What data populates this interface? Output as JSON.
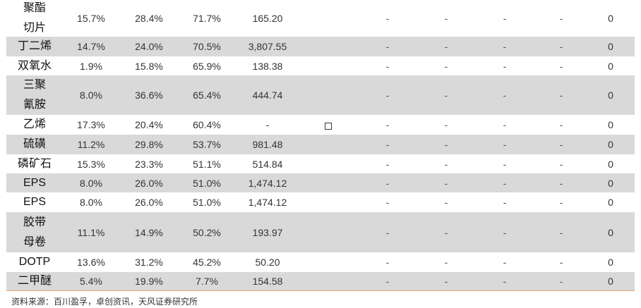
{
  "rows": [
    {
      "name": "聚酯切片",
      "v1": "15.7%",
      "v2": "28.4%",
      "v3": "71.7%",
      "v4": "165.20",
      "d1": "-",
      "d2": "-",
      "d3": "-",
      "d4": "-",
      "z": "0"
    },
    {
      "name": "丁二烯",
      "v1": "14.7%",
      "v2": "24.0%",
      "v3": "70.5%",
      "v4": "3,807.55",
      "d1": "-",
      "d2": "-",
      "d3": "-",
      "d4": "-",
      "z": "0"
    },
    {
      "name": "双氧水",
      "v1": "1.9%",
      "v2": "15.8%",
      "v3": "65.9%",
      "v4": "138.38",
      "d1": "-",
      "d2": "-",
      "d3": "-",
      "d4": "-",
      "z": "0"
    },
    {
      "name": "三聚氰胺",
      "v1": "8.0%",
      "v2": "36.6%",
      "v3": "65.4%",
      "v4": "444.74",
      "d1": "-",
      "d2": "-",
      "d3": "-",
      "d4": "-",
      "z": "0"
    },
    {
      "name": "乙烯",
      "v1": "17.3%",
      "v2": "20.4%",
      "v3": "60.4%",
      "v4": "-",
      "d1": "-",
      "d2": "-",
      "d3": "-",
      "d4": "-",
      "z": "0"
    },
    {
      "name": "硫磺",
      "v1": "11.2%",
      "v2": "29.8%",
      "v3": "53.7%",
      "v4": "981.48",
      "d1": "-",
      "d2": "-",
      "d3": "-",
      "d4": "-",
      "z": "0"
    },
    {
      "name": "磷矿石",
      "v1": "15.3%",
      "v2": "23.3%",
      "v3": "51.1%",
      "v4": "514.84",
      "d1": "-",
      "d2": "-",
      "d3": "-",
      "d4": "-",
      "z": "0"
    },
    {
      "name": "EPS",
      "v1": "8.0%",
      "v2": "26.0%",
      "v3": "51.0%",
      "v4": "1,474.12",
      "d1": "-",
      "d2": "-",
      "d3": "-",
      "d4": "-",
      "z": "0"
    },
    {
      "name": "EPS",
      "v1": "8.0%",
      "v2": "26.0%",
      "v3": "51.0%",
      "v4": "1,474.12",
      "d1": "-",
      "d2": "-",
      "d3": "-",
      "d4": "-",
      "z": "0"
    },
    {
      "name": "胶带母卷",
      "v1": "11.1%",
      "v2": "14.9%",
      "v3": "50.2%",
      "v4": "193.97",
      "d1": "-",
      "d2": "-",
      "d3": "-",
      "d4": "-",
      "z": "0"
    },
    {
      "name": "DOTP",
      "v1": "13.6%",
      "v2": "31.2%",
      "v3": "45.2%",
      "v4": "50.20",
      "d1": "-",
      "d2": "-",
      "d3": "-",
      "d4": "-",
      "z": "0"
    },
    {
      "name": "二甲醚",
      "v1": "5.4%",
      "v2": "19.9%",
      "v3": "7.7%",
      "v4": "154.58",
      "d1": "-",
      "d2": "-",
      "d3": "-",
      "d4": "-",
      "z": "0"
    }
  ],
  "source": "资料来源：百川盈孚，卓创资讯，天风证券研究所"
}
